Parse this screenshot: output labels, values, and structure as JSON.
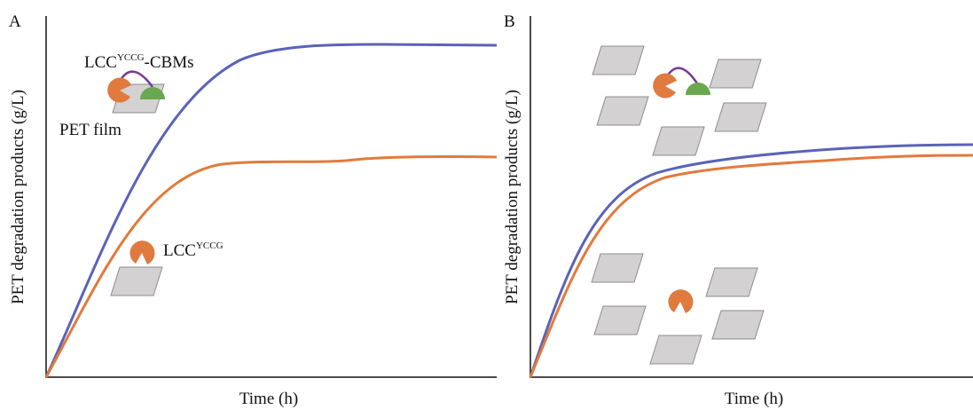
{
  "panels": [
    {
      "label": "A",
      "y_axis_label": "PET degradation products (g/L)",
      "x_axis_label": "Time (h)",
      "annotations": [
        {
          "base": "LCC",
          "superscript": "YCCG",
          "suffix": "-CBMs"
        },
        {
          "text": "PET film"
        },
        {
          "base": "LCC",
          "superscript": "YCCG"
        }
      ]
    },
    {
      "label": "B",
      "y_axis_label": "PET degradation products (g/L)",
      "x_axis_label": "Time (h)"
    }
  ]
}
